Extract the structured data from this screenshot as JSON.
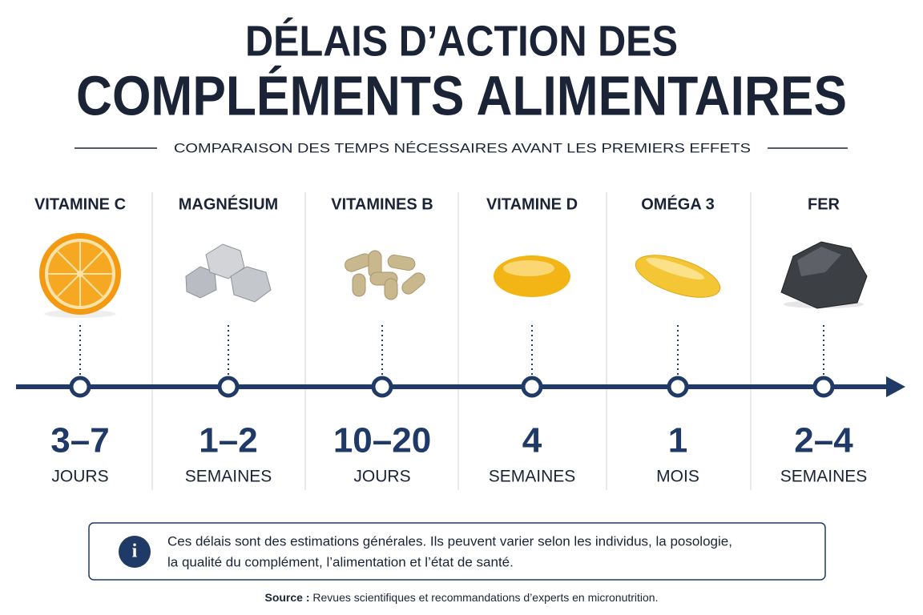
{
  "header": {
    "title_line1": "DÉLAIS D’ACTION DES",
    "title_line2": "COMPLÉMENTS ALIMENTAIRES",
    "subtitle": "COMPARAISON DES TEMPS NÉCESSAIRES AVANT LES PREMIERS EFFETS"
  },
  "items": [
    {
      "name": "VITAMINE C",
      "value": "3–7",
      "unit": "JOURS"
    },
    {
      "name": "MAGNÉSIUM",
      "value": "1–2",
      "unit": "SEMAINES"
    },
    {
      "name": "VITAMINES B",
      "value": "10–20",
      "unit": "JOURS"
    },
    {
      "name": "VITAMINE D",
      "value": "4",
      "unit": "SEMAINES"
    },
    {
      "name": "OMÉGA 3",
      "value": "1",
      "unit": "MOIS"
    },
    {
      "name": "FER",
      "value": "2–4",
      "unit": "SEMAINES"
    }
  ],
  "note": {
    "lines": [
      "Ces délais sont des estimations générales. Ils peuvent varier selon les individus, la posologie,",
      "la qualité du complément, l’alimentation et l’état de santé."
    ]
  },
  "source": {
    "label": "Source :",
    "text": "Revues scientifiques et recommandations d’experts en micronutrition."
  }
}
